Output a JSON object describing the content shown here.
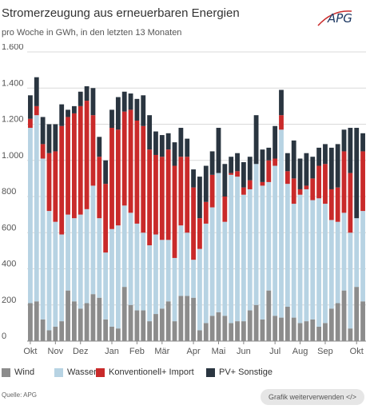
{
  "header": {
    "title": "Stromerzeugung aus erneuerbaren Energien",
    "subtitle": "pro Woche in GWh, in den letzten 13 Monaten",
    "logo_text": "APG"
  },
  "footer": {
    "source": "Quelle: APG",
    "reuse_button": "Grafik weiterverwenden </>"
  },
  "chart_data": {
    "type": "bar",
    "stacked": true,
    "title": "Stromerzeugung aus erneuerbaren Energien",
    "subtitle": "pro Woche in GWh, in den letzten 13 Monaten",
    "xlabel": "",
    "ylabel": "",
    "ylim": [
      0,
      1600
    ],
    "yticks": [
      0,
      200,
      400,
      600,
      800,
      1000,
      1200,
      1400,
      1600
    ],
    "ytick_labels": [
      "0",
      "200",
      "400",
      "600",
      "800",
      "1.000",
      "1.200",
      "1.400",
      "1.600"
    ],
    "grid": true,
    "legend_position": "bottom",
    "month_labels": [
      {
        "label": "Okt",
        "week": 1
      },
      {
        "label": "Nov",
        "week": 5
      },
      {
        "label": "Dez",
        "week": 9
      },
      {
        "label": "Jan",
        "week": 14
      },
      {
        "label": "Feb",
        "week": 18
      },
      {
        "label": "Mär",
        "week": 22
      },
      {
        "label": "Apr",
        "week": 27
      },
      {
        "label": "Mai",
        "week": 31
      },
      {
        "label": "Jun",
        "week": 35
      },
      {
        "label": "Jul",
        "week": 40
      },
      {
        "label": "Aug",
        "week": 44
      },
      {
        "label": "Sep",
        "week": 48
      },
      {
        "label": "Okt",
        "week": 53
      }
    ],
    "series": [
      {
        "name": "Wind",
        "color": "#8c8c8c",
        "values": [
          210,
          220,
          120,
          60,
          80,
          110,
          280,
          220,
          180,
          210,
          260,
          240,
          120,
          80,
          70,
          300,
          200,
          170,
          170,
          110,
          150,
          180,
          220,
          110,
          250,
          250,
          240,
          60,
          100,
          140,
          160,
          140,
          100,
          110,
          110,
          170,
          200,
          120,
          280,
          140,
          130,
          190,
          130,
          100,
          110,
          120,
          80,
          100,
          180,
          210,
          280,
          70,
          300,
          220
        ]
      },
      {
        "name": "Wasser",
        "color": "#b7d3e3",
        "values": [
          970,
          1030,
          890,
          660,
          580,
          480,
          420,
          460,
          520,
          520,
          600,
          440,
          370,
          540,
          570,
          450,
          510,
          480,
          430,
          420,
          440,
          380,
          340,
          350,
          390,
          350,
          210,
          450,
          550,
          600,
          770,
          520,
          820,
          800,
          700,
          670,
          780,
          740,
          600,
          830,
          1040,
          680,
          630,
          710,
          730,
          660,
          710,
          660,
          490,
          450,
          430,
          530,
          380,
          500
        ]
      },
      {
        "name": "Konventionell+ Import",
        "color": "#c92a2a",
        "values": [
          50,
          50,
          80,
          320,
          390,
          600,
          540,
          580,
          600,
          600,
          390,
          340,
          380,
          560,
          530,
          520,
          570,
          570,
          590,
          530,
          440,
          460,
          500,
          510,
          380,
          420,
          400,
          170,
          120,
          180,
          0,
          140,
          10,
          30,
          40,
          50,
          0,
          20,
          120,
          40,
          80,
          70,
          140,
          30,
          20,
          120,
          180,
          220,
          170,
          190,
          340,
          330,
          0,
          330
        ]
      },
      {
        "name": "PV+ Sonstige",
        "color": "#2a3540",
        "values": [
          130,
          160,
          150,
          160,
          150,
          120,
          40,
          40,
          80,
          80,
          150,
          110,
          130,
          100,
          180,
          110,
          90,
          120,
          170,
          190,
          130,
          120,
          90,
          130,
          160,
          100,
          100,
          230,
          200,
          130,
          250,
          180,
          90,
          100,
          140,
          130,
          270,
          180,
          70,
          180,
          140,
          100,
          210,
          170,
          180,
          120,
          100,
          110,
          230,
          240,
          120,
          250,
          500,
          100
        ]
      }
    ],
    "legend_entries": [
      "Wind",
      "Wasser",
      "Konventionell+ Import",
      "PV+ Sonstige"
    ]
  }
}
